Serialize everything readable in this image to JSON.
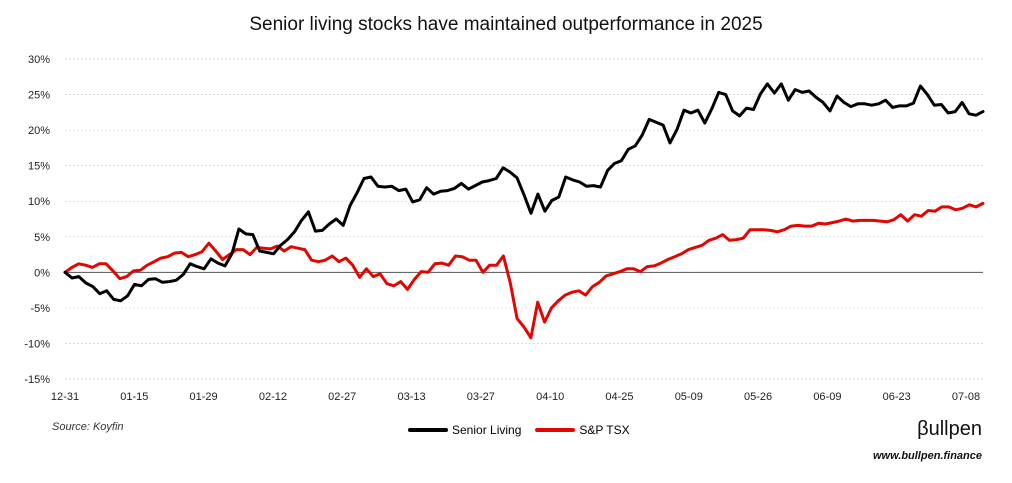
{
  "chart_data": {
    "type": "line",
    "title": "Senior living stocks have maintained outperformance in 2025",
    "x_ticks": [
      "12-31",
      "01-15",
      "01-29",
      "02-12",
      "02-27",
      "03-13",
      "03-27",
      "04-10",
      "04-25",
      "05-09",
      "05-26",
      "06-09",
      "06-23",
      "07-08"
    ],
    "y_ticks": [
      "30%",
      "25%",
      "20%",
      "15%",
      "10%",
      "5%",
      "0%",
      "-5%",
      "-10%",
      "-15%"
    ],
    "ylim": [
      -15,
      30
    ],
    "y_unit": "%",
    "grid": true,
    "legend_position": "bottom-center",
    "series": [
      {
        "name": "Senior Living",
        "color": "#000000",
        "values": [
          0,
          -0.8,
          -0.6,
          -1.5,
          -2.0,
          -3.0,
          -2.6,
          -3.8,
          -4.0,
          -3.3,
          -1.7,
          -1.9,
          -1.0,
          -0.9,
          -1.4,
          -1.3,
          -1.1,
          -0.3,
          1.2,
          0.8,
          0.5,
          1.9,
          1.3,
          0.9,
          2.6,
          6.1,
          5.4,
          5.3,
          3.0,
          2.8,
          2.6,
          3.8,
          4.6,
          5.7,
          7.3,
          8.5,
          5.8,
          5.9,
          6.8,
          7.5,
          6.6,
          9.4,
          11.2,
          13.2,
          13.4,
          12.1,
          12.0,
          12.1,
          11.5,
          11.7,
          9.9,
          10.2,
          11.9,
          11.0,
          11.4,
          11.5,
          11.8,
          12.5,
          11.7,
          12.2,
          12.7,
          12.9,
          13.2,
          14.7,
          14.1,
          13.3,
          10.9,
          8.3,
          11.0,
          8.6,
          10.1,
          10.6,
          13.4,
          13.0,
          12.7,
          12.1,
          12.2,
          12.0,
          14.3,
          15.3,
          15.7,
          17.3,
          17.8,
          19.3,
          21.5,
          21.1,
          20.7,
          18.2,
          20.1,
          22.8,
          22.4,
          22.8,
          21.0,
          23.0,
          25.3,
          25.0,
          22.7,
          22.0,
          23.1,
          22.9,
          25.1,
          26.5,
          25.2,
          26.5,
          24.2,
          25.7,
          25.3,
          25.5,
          24.6,
          23.9,
          22.7,
          24.8,
          23.9,
          23.3,
          23.7,
          23.7,
          23.5,
          23.7,
          24.2,
          23.2,
          23.4,
          23.4,
          23.8,
          26.2,
          25.0,
          23.5,
          23.6,
          22.4,
          22.6,
          23.9,
          22.3,
          22.1,
          22.6
        ]
      },
      {
        "name": "S&P TSX",
        "color": "#e10600",
        "values": [
          0,
          0.7,
          1.2,
          1.0,
          0.7,
          1.2,
          1.2,
          0.2,
          -0.9,
          -0.6,
          0.2,
          0.3,
          1.0,
          1.5,
          2.0,
          2.2,
          2.7,
          2.8,
          2.2,
          2.5,
          2.9,
          4.1,
          3.0,
          1.8,
          2.5,
          3.2,
          3.2,
          2.5,
          3.5,
          3.4,
          3.3,
          3.7,
          3.0,
          3.6,
          3.4,
          3.2,
          1.7,
          1.5,
          1.7,
          2.3,
          1.5,
          2.0,
          1.0,
          -0.7,
          0.5,
          -0.6,
          -0.2,
          -1.6,
          -1.9,
          -1.3,
          -2.4,
          -1.0,
          0.1,
          0.0,
          1.2,
          1.3,
          1.0,
          2.3,
          2.2,
          1.7,
          1.7,
          0.0,
          1.0,
          1.0,
          2.3,
          -1.5,
          -6.5,
          -7.7,
          -9.2,
          -4.2,
          -7.0,
          -5.0,
          -4.0,
          -3.2,
          -2.8,
          -2.6,
          -3.2,
          -2.0,
          -1.4,
          -0.5,
          -0.2,
          0.1,
          0.5,
          0.5,
          0.1,
          0.8,
          0.9,
          1.3,
          1.8,
          2.2,
          2.6,
          3.2,
          3.5,
          3.8,
          4.5,
          4.8,
          5.3,
          4.5,
          4.6,
          4.8,
          6.0,
          6.0,
          6.0,
          5.9,
          5.7,
          6.0,
          6.5,
          6.6,
          6.5,
          6.5,
          6.9,
          6.8,
          7.0,
          7.2,
          7.5,
          7.2,
          7.3,
          7.3,
          7.3,
          7.2,
          7.1,
          7.4,
          8.1,
          7.2,
          8.1,
          7.9,
          8.7,
          8.6,
          9.2,
          9.2,
          8.8,
          9.0,
          9.5,
          9.2,
          9.7
        ]
      }
    ]
  },
  "footer": {
    "source": "Source: Koyfin",
    "brand": "βullpen",
    "url": "www.bullpen.finance"
  }
}
